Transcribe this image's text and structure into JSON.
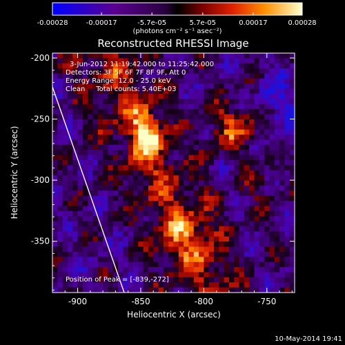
{
  "colorbar": {
    "ticks": [
      "-0.00028",
      "-0.00017",
      "-5.7e-05",
      "5.7e-05",
      "0.00017",
      "0.00028"
    ],
    "units_label": "(photons cm⁻² s⁻¹ asec⁻²)",
    "range": [
      -0.00028,
      0.00028
    ]
  },
  "plot": {
    "title": "Reconstructed RHESSI Image",
    "info_lines": [
      "3-Jun-2012 11:19:42.000 to 11:25:42.000",
      "Detectors: 3F 5F 6F 7F 8F 9F, Att 0",
      "Energy Range: 12.0 - 25.0 keV",
      "Clean     Total counts: 5.40E+03"
    ],
    "peak_label": "Position of Peak = [-839,-272]",
    "xlabel": "Heliocentric X (arcsec)",
    "ylabel": "Heliocentric Y (arcsec)",
    "x_ticks": [
      "-900",
      "-850",
      "-800",
      "-750"
    ],
    "y_ticks": [
      "-200",
      "-250",
      "-300",
      "-350"
    ],
    "xlim": [
      -920,
      -728
    ],
    "ylim": [
      -392,
      -196
    ]
  },
  "footer": {
    "timestamp": "10-May-2014 19:41"
  },
  "colors": {
    "background": "#000000",
    "foreground": "#ffffff",
    "limb_line": "#ffffff"
  }
}
